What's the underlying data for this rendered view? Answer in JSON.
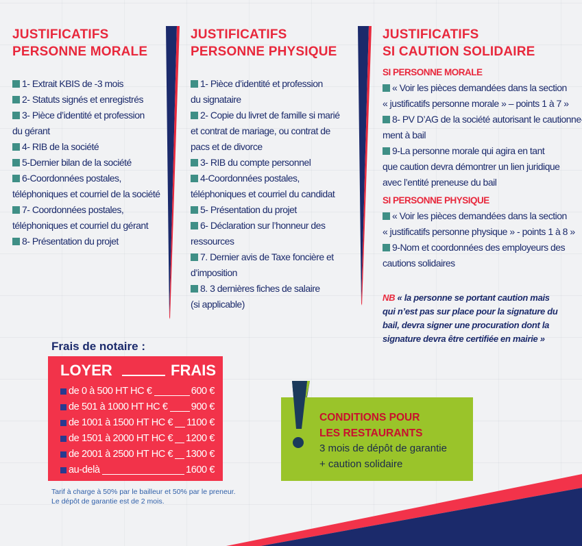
{
  "columns": [
    {
      "title": [
        "JUSTIFICATIFS",
        "PERSONNE MORALE"
      ],
      "items": [
        {
          "bullet": true,
          "text": "1- Extrait KBIS de -3 mois"
        },
        {
          "bullet": true,
          "text": "2- Statuts signés et enregistrés"
        },
        {
          "bullet": true,
          "text": "3- Pièce d’identité et profession"
        },
        {
          "bullet": false,
          "text": "du gérant"
        },
        {
          "bullet": true,
          "text": "4- RIB de la société"
        },
        {
          "bullet": true,
          "text": "5-Dernier bilan de la société"
        },
        {
          "bullet": true,
          "text": "6-Coordonnées postales,"
        },
        {
          "bullet": false,
          "text": "téléphoniques et courriel de la société"
        },
        {
          "bullet": true,
          "text": "7- Coordonnées postales,"
        },
        {
          "bullet": false,
          "text": "téléphoniques et courriel du gérant"
        },
        {
          "bullet": true,
          "text": "8- Présentation du projet"
        }
      ]
    },
    {
      "title": [
        "JUSTIFICATIFS",
        "PERSONNE PHYSIQUE"
      ],
      "items": [
        {
          "bullet": true,
          "text": "1- Pièce d’identité et profession"
        },
        {
          "bullet": false,
          "text": "du signataire"
        },
        {
          "bullet": true,
          "text": "2- Copie du livret de famille si marié"
        },
        {
          "bullet": false,
          "text": "et contrat de mariage, ou contrat de"
        },
        {
          "bullet": false,
          "text": "pacs et de divorce"
        },
        {
          "bullet": true,
          "text": "3- RIB du compte personnel"
        },
        {
          "bullet": true,
          "text": "4-Coordonnées postales,"
        },
        {
          "bullet": false,
          "text": "téléphoniques et courriel du candidat"
        },
        {
          "bullet": true,
          "text": "5- Présentation du projet"
        },
        {
          "bullet": true,
          "text": "6- Déclaration sur l’honneur des"
        },
        {
          "bullet": false,
          "text": "ressources"
        },
        {
          "bullet": true,
          "text": "7. Dernier avis de Taxe foncière et"
        },
        {
          "bullet": false,
          "text": "d’imposition"
        },
        {
          "bullet": true,
          "text": "8. 3 dernières fiches de salaire"
        },
        {
          "bullet": false,
          "text": "(si applicable)"
        }
      ]
    },
    {
      "title": [
        "JUSTIFICATIFS",
        "SI CAUTION SOLIDAIRE"
      ],
      "items": [
        {
          "sub": "SI PERSONNE MORALE"
        },
        {
          "bullet": true,
          "text": "« Voir les pièces demandées dans la section"
        },
        {
          "bullet": false,
          "text": "« justificatifs personne morale » – points 1 à 7 »"
        },
        {
          "bullet": true,
          "text": "8- PV D’AG de la société autorisant le cautionne-"
        },
        {
          "bullet": false,
          "text": "ment à bail"
        },
        {
          "bullet": true,
          "text": "9-La personne morale qui agira en tant"
        },
        {
          "bullet": false,
          "text": "que caution devra démontrer un lien juridique"
        },
        {
          "bullet": false,
          "text": "avec l’entité preneuse du bail"
        },
        {
          "sub": "SI PERSONNE PHYSIQUE"
        },
        {
          "bullet": true,
          "text": "« Voir les pièces demandées dans la section"
        },
        {
          "bullet": false,
          "text": "« justificatifs personne physique » - points 1 à 8 »"
        },
        {
          "bullet": true,
          "text": "9-Nom et coordonnées des employeurs des"
        },
        {
          "bullet": false,
          "text": "cautions solidaires"
        }
      ],
      "nb_label": "NB",
      "nb_text": "« la personne se portant caution mais qui n’est pas sur place pour la signature du bail, devra signer une procuration dont la signature devra être certifiée en mairie »"
    }
  ],
  "frais": {
    "title": "Frais de notaire :",
    "col_loyer": "LOYER",
    "col_frais": "FRAIS",
    "rows": [
      {
        "loyer": "de 0 à 500 HT HC €",
        "frais": "600 €"
      },
      {
        "loyer": "de 501 à 1000 HT HC €",
        "frais": "900 €"
      },
      {
        "loyer": "de 1001 à 1500 HT HC €",
        "frais": "1100 €"
      },
      {
        "loyer": "de 1501 à 2000 HT HC €",
        "frais": "1200 €"
      },
      {
        "loyer": "de 2001 à 2500 HT HC €",
        "frais": "1300 €"
      },
      {
        "loyer": "au-delà",
        "frais": "1600 €"
      }
    ],
    "note": [
      "Tarif à charge à 50% par le bailleur et 50% par le preneur.",
      "Le dépôt de garantie est de 2 mois."
    ]
  },
  "restaurants": {
    "title": [
      "CONDITIONS POUR",
      "LES RESTAURANTS"
    ],
    "body": [
      "3 mois de dépôt de garantie",
      "+ caution solidaire"
    ]
  },
  "colors": {
    "red": "#e8283c",
    "navy": "#1b2a6b",
    "teal": "#3f8f86",
    "green": "#9ac42a"
  }
}
